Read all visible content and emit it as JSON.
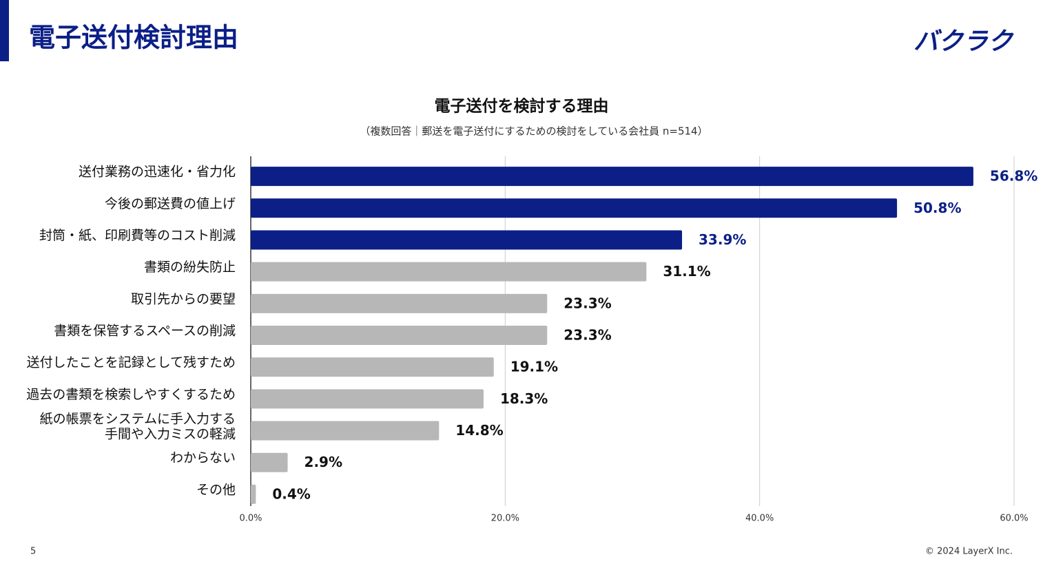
{
  "header": {
    "title": "電子送付検討理由",
    "logo": "バクラク"
  },
  "footer": {
    "page": "5",
    "copyright": "© 2024 LayerX Inc."
  },
  "chart_data": {
    "type": "bar",
    "orientation": "horizontal",
    "title": "電子送付を検討する理由",
    "subtitle": "（複数回答｜郵送を電子送付にするための検討をしている会社員 n=514）",
    "categories": [
      "送付業務の迅速化・省力化",
      "今後の郵送費の値上げ",
      "封筒・紙、印刷費等のコスト削減",
      "書類の紛失防止",
      "取引先からの要望",
      "書類を保管するスペースの削減",
      "送付したことを記録として残すため",
      "過去の書類を検索しやすくするため",
      "紙の帳票をシステムに手入力する\n手間や入力ミスの軽減",
      "わからない",
      "その他"
    ],
    "values": [
      56.8,
      50.8,
      33.9,
      31.1,
      23.3,
      23.3,
      19.1,
      18.3,
      14.8,
      2.9,
      0.4
    ],
    "value_labels": [
      "56.8%",
      "50.8%",
      "33.9%",
      "31.1%",
      "23.3%",
      "23.3%",
      "19.1%",
      "18.3%",
      "14.8%",
      "2.9%",
      "0.4%"
    ],
    "colors": [
      "#0b1f87",
      "#0b1f87",
      "#0b1f87",
      "#b7b7b7",
      "#b7b7b7",
      "#b7b7b7",
      "#b7b7b7",
      "#b7b7b7",
      "#b7b7b7",
      "#b7b7b7",
      "#b7b7b7"
    ],
    "xlim": [
      0,
      60
    ],
    "xticks": [
      {
        "value": 0,
        "label": "0.0%"
      },
      {
        "value": 20,
        "label": "20.0%"
      },
      {
        "value": 40,
        "label": "40.0%"
      },
      {
        "value": 60,
        "label": "60.0%"
      }
    ],
    "grid": true
  }
}
